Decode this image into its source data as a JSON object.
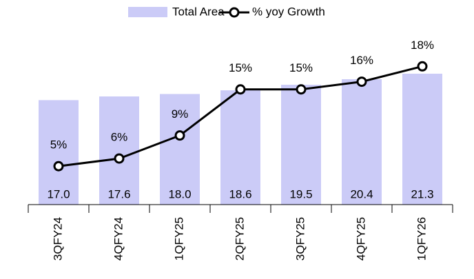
{
  "chart_data": {
    "type": "bar",
    "categories": [
      "3QFY24",
      "4QFY24",
      "1QFY25",
      "2QFY25",
      "3QFY25",
      "4QFY25",
      "1QFY26"
    ],
    "series": [
      {
        "name": "Total Area",
        "type": "bar",
        "color": "#cbcbf7",
        "values": [
          17.0,
          17.6,
          18.0,
          18.6,
          19.5,
          20.4,
          21.3
        ],
        "value_labels": [
          "17.0",
          "17.6",
          "18.0",
          "18.6",
          "19.5",
          "20.4",
          "21.3"
        ]
      },
      {
        "name": "% yoy Growth",
        "type": "line",
        "axis": "y2",
        "color": "#000000",
        "values": [
          5,
          6,
          9,
          15,
          15,
          16,
          18
        ],
        "value_labels": [
          "5%",
          "6%",
          "9%",
          "15%",
          "15%",
          "16%",
          "18%"
        ]
      }
    ],
    "ylim": [
      0,
      25
    ],
    "y2lim": [
      0,
      20
    ],
    "legend": "top"
  }
}
